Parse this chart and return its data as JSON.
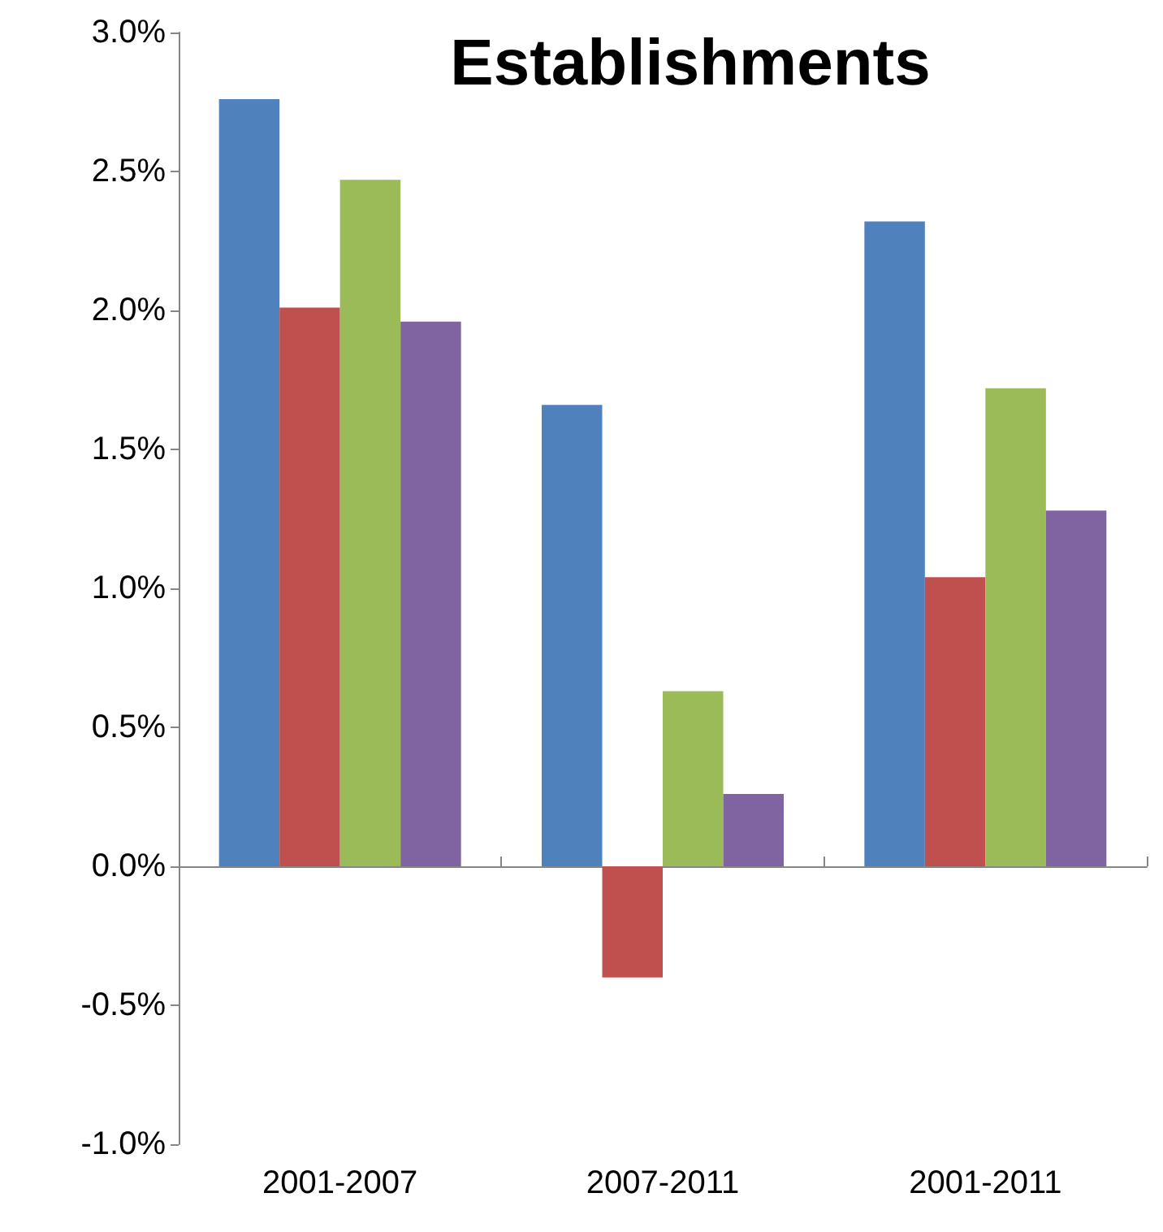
{
  "chart_data": {
    "type": "bar",
    "title": "Establishments",
    "categories": [
      "2001-2007",
      "2007-2011",
      "2001-2011"
    ],
    "series": [
      {
        "color": "#4f81bd",
        "values": [
          2.76,
          1.66,
          2.32
        ]
      },
      {
        "color": "#c0504d",
        "values": [
          2.01,
          -0.4,
          1.04
        ]
      },
      {
        "color": "#9bbb59",
        "values": [
          2.47,
          0.63,
          1.72
        ]
      },
      {
        "color": "#8064a2",
        "values": [
          1.96,
          0.26,
          1.28
        ]
      }
    ],
    "ylim": [
      -1,
      3
    ],
    "yticks": [
      {
        "value": -1,
        "label": "-1.0%"
      },
      {
        "value": -0.5,
        "label": "-0.5%"
      },
      {
        "value": 0,
        "label": "0.0%"
      },
      {
        "value": 0.5,
        "label": "0.5%"
      },
      {
        "value": 1,
        "label": "1.0%"
      },
      {
        "value": 1.5,
        "label": "1.5%"
      },
      {
        "value": 2,
        "label": "2.0%"
      },
      {
        "value": 2.5,
        "label": "2.5%"
      },
      {
        "value": 3,
        "label": "3.0%"
      }
    ],
    "tick_labels": "xy"
  }
}
